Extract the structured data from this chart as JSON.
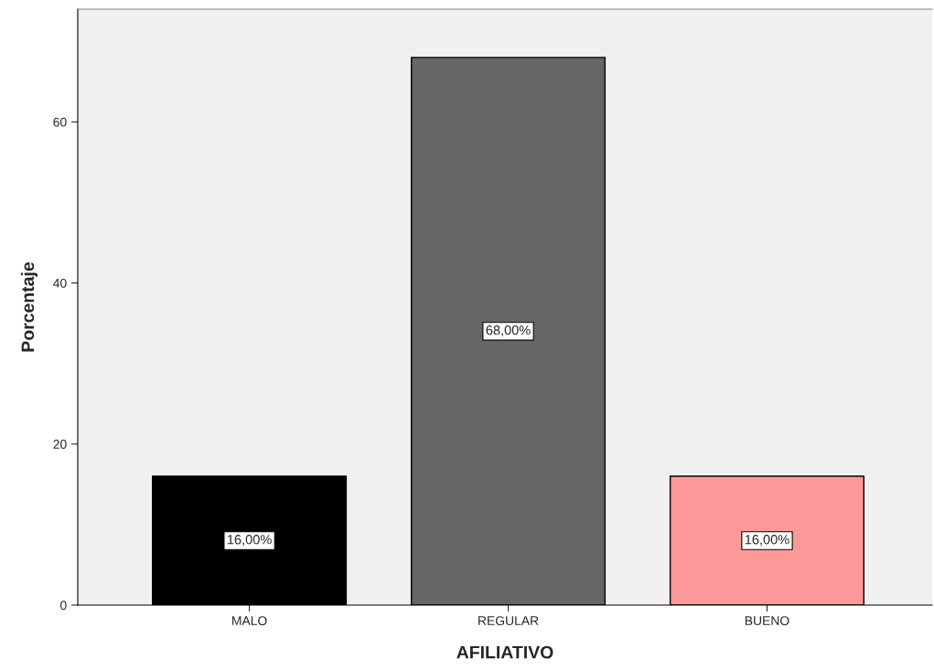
{
  "chart_data": {
    "type": "bar",
    "xlabel": "AFILIATIVO",
    "ylabel": "Porcentaje",
    "categories": [
      "MALO",
      "REGULAR",
      "BUENO"
    ],
    "values": [
      16,
      68,
      16
    ],
    "colors": [
      "#000000",
      "#666666",
      "#ff9999"
    ],
    "value_labels": [
      "16,00%",
      "68,00%",
      "16,00%"
    ],
    "ylim": [
      0,
      74
    ],
    "yticks": [
      0,
      20,
      40,
      60
    ],
    "grid": false,
    "legend": false
  }
}
